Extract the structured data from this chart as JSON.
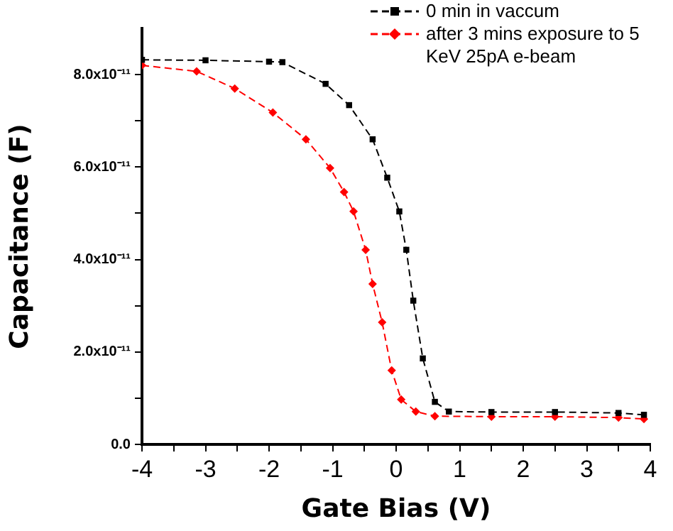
{
  "chart_data": {
    "type": "line",
    "xlabel": "Gate Bias (V)",
    "ylabel": "Capacitance (F)",
    "xlim": [
      -4,
      4
    ],
    "ylim": [
      0,
      9e-11
    ],
    "xticks": [
      -4,
      {
        "value": -3.5,
        "label": null
      },
      -3,
      {
        "value": -2.5,
        "label": null
      },
      -2,
      {
        "value": -1.5,
        "label": null
      },
      -1,
      {
        "value": -0.5,
        "label": null
      },
      0,
      {
        "value": 0.5,
        "label": null
      },
      1,
      {
        "value": 1.5,
        "label": null
      },
      2,
      {
        "value": 2.5,
        "label": null
      },
      3,
      {
        "value": 3.5,
        "label": null
      },
      4
    ],
    "yticks": [
      {
        "value": 0,
        "label": "0.0"
      },
      {
        "value": 1e-11,
        "label": null
      },
      {
        "value": 2e-11,
        "label": "2.0x10⁻¹¹"
      },
      {
        "value": 3e-11,
        "label": null
      },
      {
        "value": 4e-11,
        "label": "4.0x10⁻¹¹"
      },
      {
        "value": 5e-11,
        "label": null
      },
      {
        "value": 6e-11,
        "label": "6.0x10⁻¹¹"
      },
      {
        "value": 7e-11,
        "label": null
      },
      {
        "value": 8e-11,
        "label": "8.0x10⁻¹¹"
      }
    ],
    "grid": false,
    "legend": "top right",
    "line_style": "dashed",
    "series": [
      {
        "name": "0 min in vaccum",
        "color": "#000000",
        "marker": "square",
        "x": [
          -4,
          -3,
          -2,
          -1.79,
          -1.11,
          -0.74,
          -0.37,
          -0.14,
          0.05,
          0.16,
          0.27,
          0.42,
          0.61,
          0.83,
          1.5,
          2.5,
          3.5,
          3.9
        ],
        "values": [
          8.32e-11,
          8.31e-11,
          8.28e-11,
          8.27e-11,
          7.8e-11,
          7.34e-11,
          6.6e-11,
          5.77e-11,
          5.04e-11,
          4.21e-11,
          3.11e-11,
          1.86e-11,
          9.2e-12,
          7.1e-12,
          7e-12,
          7e-12,
          6.8e-12,
          6.4e-12
        ]
      },
      {
        "name": "after 3 mins exposure to 5 KeV 25pA e-beam",
        "color": "#ff0000",
        "marker": "diamond",
        "x": [
          -4,
          -3.14,
          -2.54,
          -1.94,
          -1.42,
          -1.04,
          -0.82,
          -0.67,
          -0.48,
          -0.37,
          -0.22,
          -0.07,
          0.08,
          0.31,
          0.61,
          1.5,
          2.5,
          3.5,
          3.9
        ],
        "values": [
          8.2e-11,
          8.07e-11,
          7.7e-11,
          7.18e-11,
          6.6e-11,
          5.98e-11,
          5.46e-11,
          5.04e-11,
          4.21e-11,
          3.47e-11,
          2.64e-11,
          1.6e-11,
          9.7e-12,
          7.1e-12,
          6.1e-12,
          6e-12,
          6e-12,
          5.8e-12,
          5.5e-12
        ]
      }
    ]
  }
}
